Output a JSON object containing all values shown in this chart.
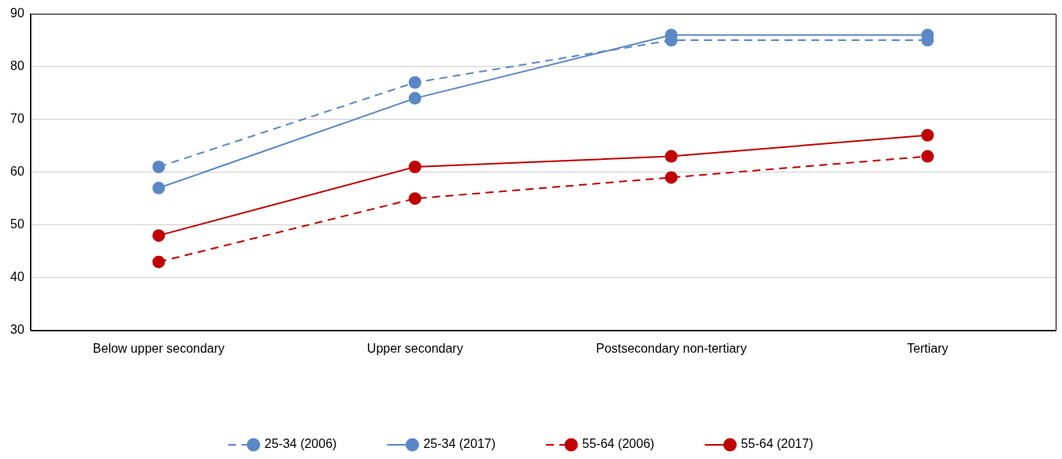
{
  "chart_data": {
    "type": "line",
    "categories": [
      "Below upper secondary",
      "Upper secondary",
      "Postsecondary non-tertiary",
      "Tertiary"
    ],
    "series": [
      {
        "name": "25-34 (2006)",
        "color": "#5b87c5",
        "line_style": "dashed",
        "values": [
          61,
          77,
          85,
          85
        ]
      },
      {
        "name": "25-34 (2017)",
        "color": "#5b87c5",
        "line_style": "solid",
        "values": [
          57,
          74,
          86,
          86
        ]
      },
      {
        "name": "55-64 (2006)",
        "color": "#c00000",
        "line_style": "dashed",
        "values": [
          43,
          55,
          59,
          63
        ]
      },
      {
        "name": "55-64 (2017)",
        "color": "#c00000",
        "line_style": "solid",
        "values": [
          48,
          61,
          63,
          67
        ]
      }
    ],
    "ylim": [
      30,
      90
    ],
    "yticks": [
      30,
      40,
      50,
      60,
      70,
      80,
      90
    ],
    "grid": "y",
    "legend": "bottom",
    "marker": "circle"
  }
}
